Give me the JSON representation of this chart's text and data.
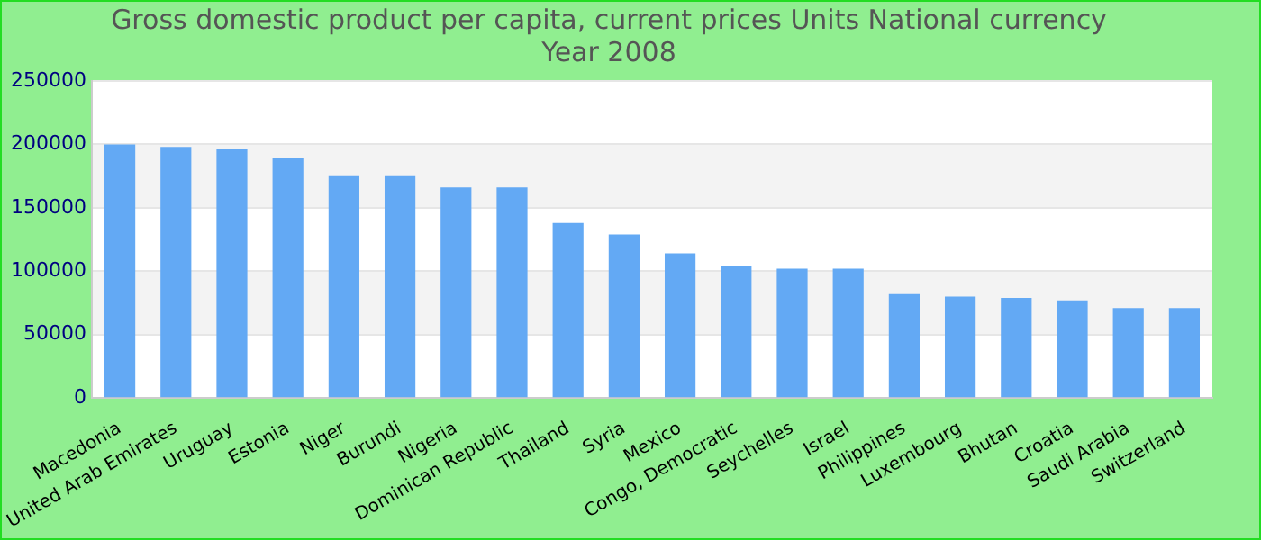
{
  "chart_data": {
    "type": "bar",
    "title": "Gross domestic product per capita, current prices Units National currency",
    "subtitle": "Year 2008",
    "categories": [
      "Macedonia",
      "United Arab Emirates",
      "Uruguay",
      "Estonia",
      "Niger",
      "Burundi",
      "Nigeria",
      "Dominican Republic",
      "Thailand",
      "Syria",
      "Mexico",
      "Congo, Democratic",
      "Seychelles",
      "Israel",
      "Philippines",
      "Luxembourg",
      "Bhutan",
      "Croatia",
      "Saudi Arabia",
      "Switzerland"
    ],
    "values": [
      200000,
      198000,
      196000,
      189000,
      175000,
      175000,
      166000,
      166000,
      138000,
      129000,
      114000,
      104000,
      102000,
      102000,
      82000,
      80000,
      79000,
      77000,
      71000,
      71000
    ],
    "color": "#63a9f4",
    "ylim": [
      0,
      250000
    ],
    "yticks": [
      0,
      50000,
      100000,
      150000,
      200000,
      250000
    ],
    "grid": true,
    "legend": false
  }
}
